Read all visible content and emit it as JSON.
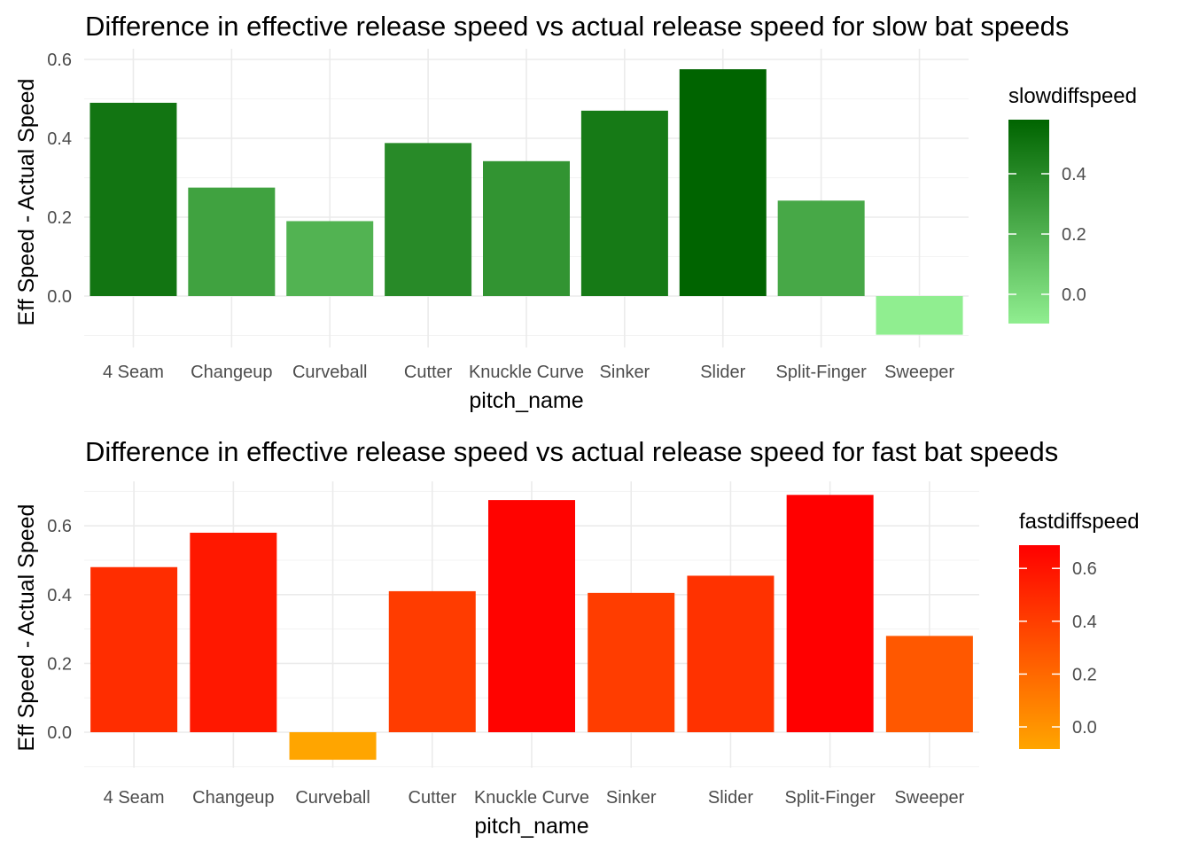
{
  "chart_data": [
    {
      "type": "bar",
      "title": "Difference in effective release speed vs actual release speed for slow bat speeds",
      "xlabel": "pitch_name",
      "ylabel": "Eff Speed - Actual Speed",
      "categories": [
        "4 Seam",
        "Changeup",
        "Curveball",
        "Cutter",
        "Knuckle Curve",
        "Sinker",
        "Slider",
        "Split-Finger",
        "Sweeper"
      ],
      "values": [
        0.49,
        0.275,
        0.19,
        0.388,
        0.342,
        0.47,
        0.575,
        0.242,
        -0.098
      ],
      "ylim": [
        -0.1,
        0.6
      ],
      "y_ticks": [
        0.0,
        0.2,
        0.4,
        0.6
      ],
      "y_tick_labels": [
        "0.0",
        "0.2",
        "0.4",
        "0.6"
      ],
      "grid": true,
      "legend": {
        "title": "slowdiffspeed",
        "placement": "right",
        "ticks": [
          0.0,
          0.2,
          0.4
        ],
        "tick_labels": [
          "0.0",
          "0.2",
          "0.4"
        ],
        "color_low": "#90ee90",
        "color_high": "#006400"
      }
    },
    {
      "type": "bar",
      "title": "Difference in effective release speed vs actual release speed for fast bat speeds",
      "xlabel": "pitch_name",
      "ylabel": "Eff Speed - Actual Speed",
      "categories": [
        "4 Seam",
        "Changeup",
        "Curveball",
        "Cutter",
        "Knuckle Curve",
        "Sinker",
        "Slider",
        "Split-Finger",
        "Sweeper"
      ],
      "values": [
        0.48,
        0.58,
        -0.08,
        0.41,
        0.675,
        0.405,
        0.455,
        0.69,
        0.28
      ],
      "ylim": [
        -0.1,
        0.7
      ],
      "y_ticks": [
        0.0,
        0.2,
        0.4,
        0.6
      ],
      "y_tick_labels": [
        "0.0",
        "0.2",
        "0.4",
        "0.6"
      ],
      "grid": true,
      "legend": {
        "title": "fastdiffspeed",
        "placement": "right",
        "ticks": [
          0.0,
          0.2,
          0.4,
          0.6
        ],
        "tick_labels": [
          "0.0",
          "0.2",
          "0.4",
          "0.6"
        ],
        "color_low": "#ffa500",
        "color_high": "#ff0000"
      }
    }
  ]
}
